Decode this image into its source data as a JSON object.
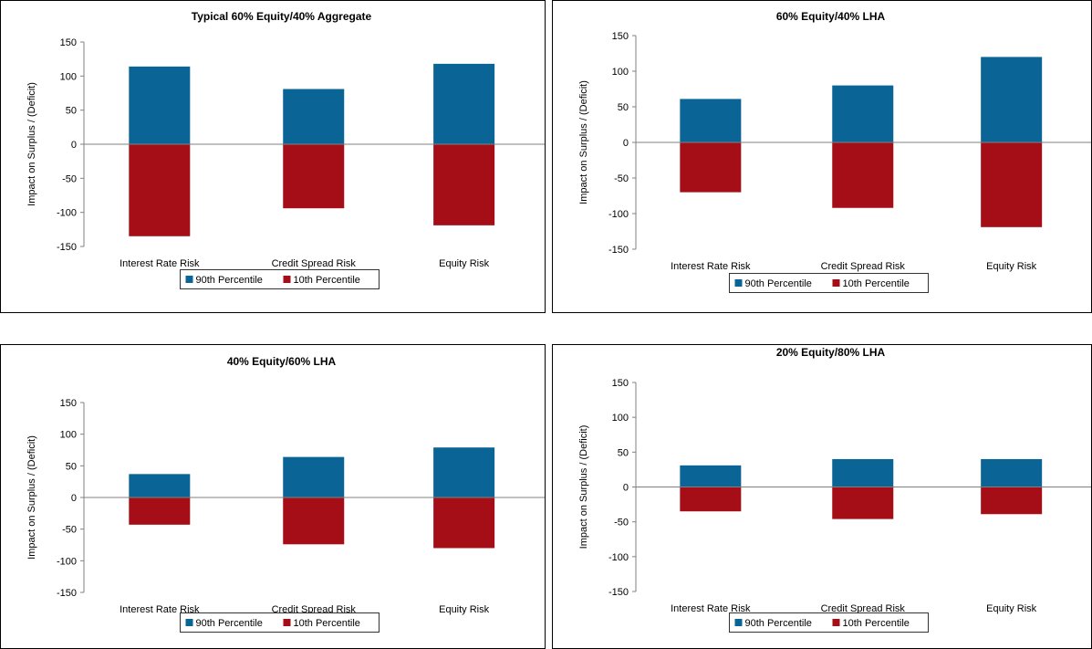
{
  "chart_data": [
    {
      "type": "bar",
      "title": "Typical 60% Equity/40% Aggregate",
      "ylabel": "Impact on Surplus / (Deficit)",
      "xlabel": "",
      "ylim": [
        -150,
        150
      ],
      "yticks": [
        150,
        100,
        50,
        0,
        -50,
        -100,
        -150
      ],
      "categories": [
        "Interest Rate Risk",
        "Credit Spread Risk",
        "Equity Risk"
      ],
      "series": [
        {
          "name": "90th Percentile",
          "color": "#0A6496",
          "values": [
            114,
            81,
            118
          ]
        },
        {
          "name": "10th Percentile",
          "color": "#A50E16",
          "values": [
            -135,
            -94,
            -119
          ]
        }
      ],
      "legend": "bottom",
      "grid": false
    },
    {
      "type": "bar",
      "title": "60% Equity/40% LHA",
      "ylabel": "Impact on Surplus / (Deficit)",
      "xlabel": "",
      "ylim": [
        -150,
        150
      ],
      "yticks": [
        150,
        100,
        50,
        0,
        -50,
        -100,
        -150
      ],
      "categories": [
        "Interest Rate Risk",
        "Credit Spread Risk",
        "Equity Risk"
      ],
      "series": [
        {
          "name": "90th Percentile",
          "color": "#0A6496",
          "values": [
            61,
            80,
            120
          ]
        },
        {
          "name": "10th Percentile",
          "color": "#A50E16",
          "values": [
            -70,
            -92,
            -119
          ]
        }
      ],
      "legend": "bottom",
      "grid": false
    },
    {
      "type": "bar",
      "title": "40% Equity/60% LHA",
      "ylabel": "Impact on Surplus / (Deficit)",
      "xlabel": "",
      "ylim": [
        -150,
        150
      ],
      "yticks": [
        150,
        100,
        50,
        0,
        -50,
        -100,
        -150
      ],
      "categories": [
        "Interest Rate Risk",
        "Credit Spread Risk",
        "Equity Risk"
      ],
      "series": [
        {
          "name": "90th Percentile",
          "color": "#0A6496",
          "values": [
            37,
            64,
            79
          ]
        },
        {
          "name": "10th Percentile",
          "color": "#A50E16",
          "values": [
            -43,
            -74,
            -80
          ]
        }
      ],
      "legend": "bottom",
      "grid": false
    },
    {
      "type": "bar",
      "title": "20% Equity/80% LHA",
      "ylabel": "Impact on Surplus / (Deficit)",
      "xlabel": "",
      "ylim": [
        -150,
        150
      ],
      "yticks": [
        150,
        100,
        50,
        0,
        -50,
        -100,
        -150
      ],
      "categories": [
        "Interest Rate Risk",
        "Credit Spread Risk",
        "Equity Risk"
      ],
      "series": [
        {
          "name": "90th Percentile",
          "color": "#0A6496",
          "values": [
            31,
            40,
            40
          ]
        },
        {
          "name": "10th Percentile",
          "color": "#A50E16",
          "values": [
            -35,
            -46,
            -39
          ]
        }
      ],
      "legend": "bottom",
      "grid": false
    }
  ]
}
